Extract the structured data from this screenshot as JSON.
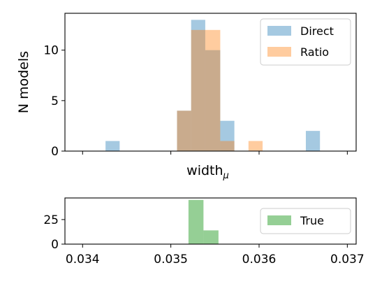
{
  "chart_data": [
    {
      "type": "bar",
      "subtype": "histogram",
      "xlabel": "width",
      "xlabel_subscript": "μ",
      "ylabel": "N models",
      "xlim": [
        0.0338,
        0.0371
      ],
      "ylim": [
        0,
        13.65
      ],
      "yticks": [
        "0",
        "5",
        "10"
      ],
      "xticks": [
        0.034,
        0.035,
        0.036,
        0.037
      ],
      "xtick_labels_shown": false,
      "grid": false,
      "legend_position": "top-right",
      "series": [
        {
          "name": "Direct",
          "color": "#1f77b4",
          "alpha": 0.4,
          "bins": [
            {
              "x0": 0.03426,
              "x1": 0.03442,
              "count": 1
            },
            {
              "x0": 0.03507,
              "x1": 0.03523,
              "count": 4
            },
            {
              "x0": 0.03523,
              "x1": 0.03539,
              "count": 13
            },
            {
              "x0": 0.03539,
              "x1": 0.03556,
              "count": 10
            },
            {
              "x0": 0.03556,
              "x1": 0.03572,
              "count": 3
            },
            {
              "x0": 0.03653,
              "x1": 0.03669,
              "count": 2
            }
          ]
        },
        {
          "name": "Ratio",
          "color": "#ff7f0e",
          "alpha": 0.4,
          "bins": [
            {
              "x0": 0.03507,
              "x1": 0.03523,
              "count": 4
            },
            {
              "x0": 0.03523,
              "x1": 0.03539,
              "count": 12
            },
            {
              "x0": 0.03539,
              "x1": 0.03556,
              "count": 12
            },
            {
              "x0": 0.03556,
              "x1": 0.03572,
              "count": 1
            },
            {
              "x0": 0.03588,
              "x1": 0.03604,
              "count": 1
            }
          ]
        }
      ]
    },
    {
      "type": "bar",
      "subtype": "histogram",
      "xlabel": "",
      "ylabel": "",
      "xlim": [
        0.0338,
        0.0371
      ],
      "ylim": [
        0,
        47
      ],
      "yticks": [
        "0",
        "25"
      ],
      "xticks": [
        0.034,
        0.035,
        0.036,
        0.037
      ],
      "xtick_labels": [
        "0.034",
        "0.035",
        "0.036",
        "0.037"
      ],
      "grid": false,
      "legend_position": "right",
      "series": [
        {
          "name": "True",
          "color": "#2ca02c",
          "alpha": 0.5,
          "bins": [
            {
              "x0": 0.0352,
              "x1": 0.03537,
              "count": 45
            },
            {
              "x0": 0.03537,
              "x1": 0.03554,
              "count": 14
            }
          ]
        }
      ]
    }
  ]
}
